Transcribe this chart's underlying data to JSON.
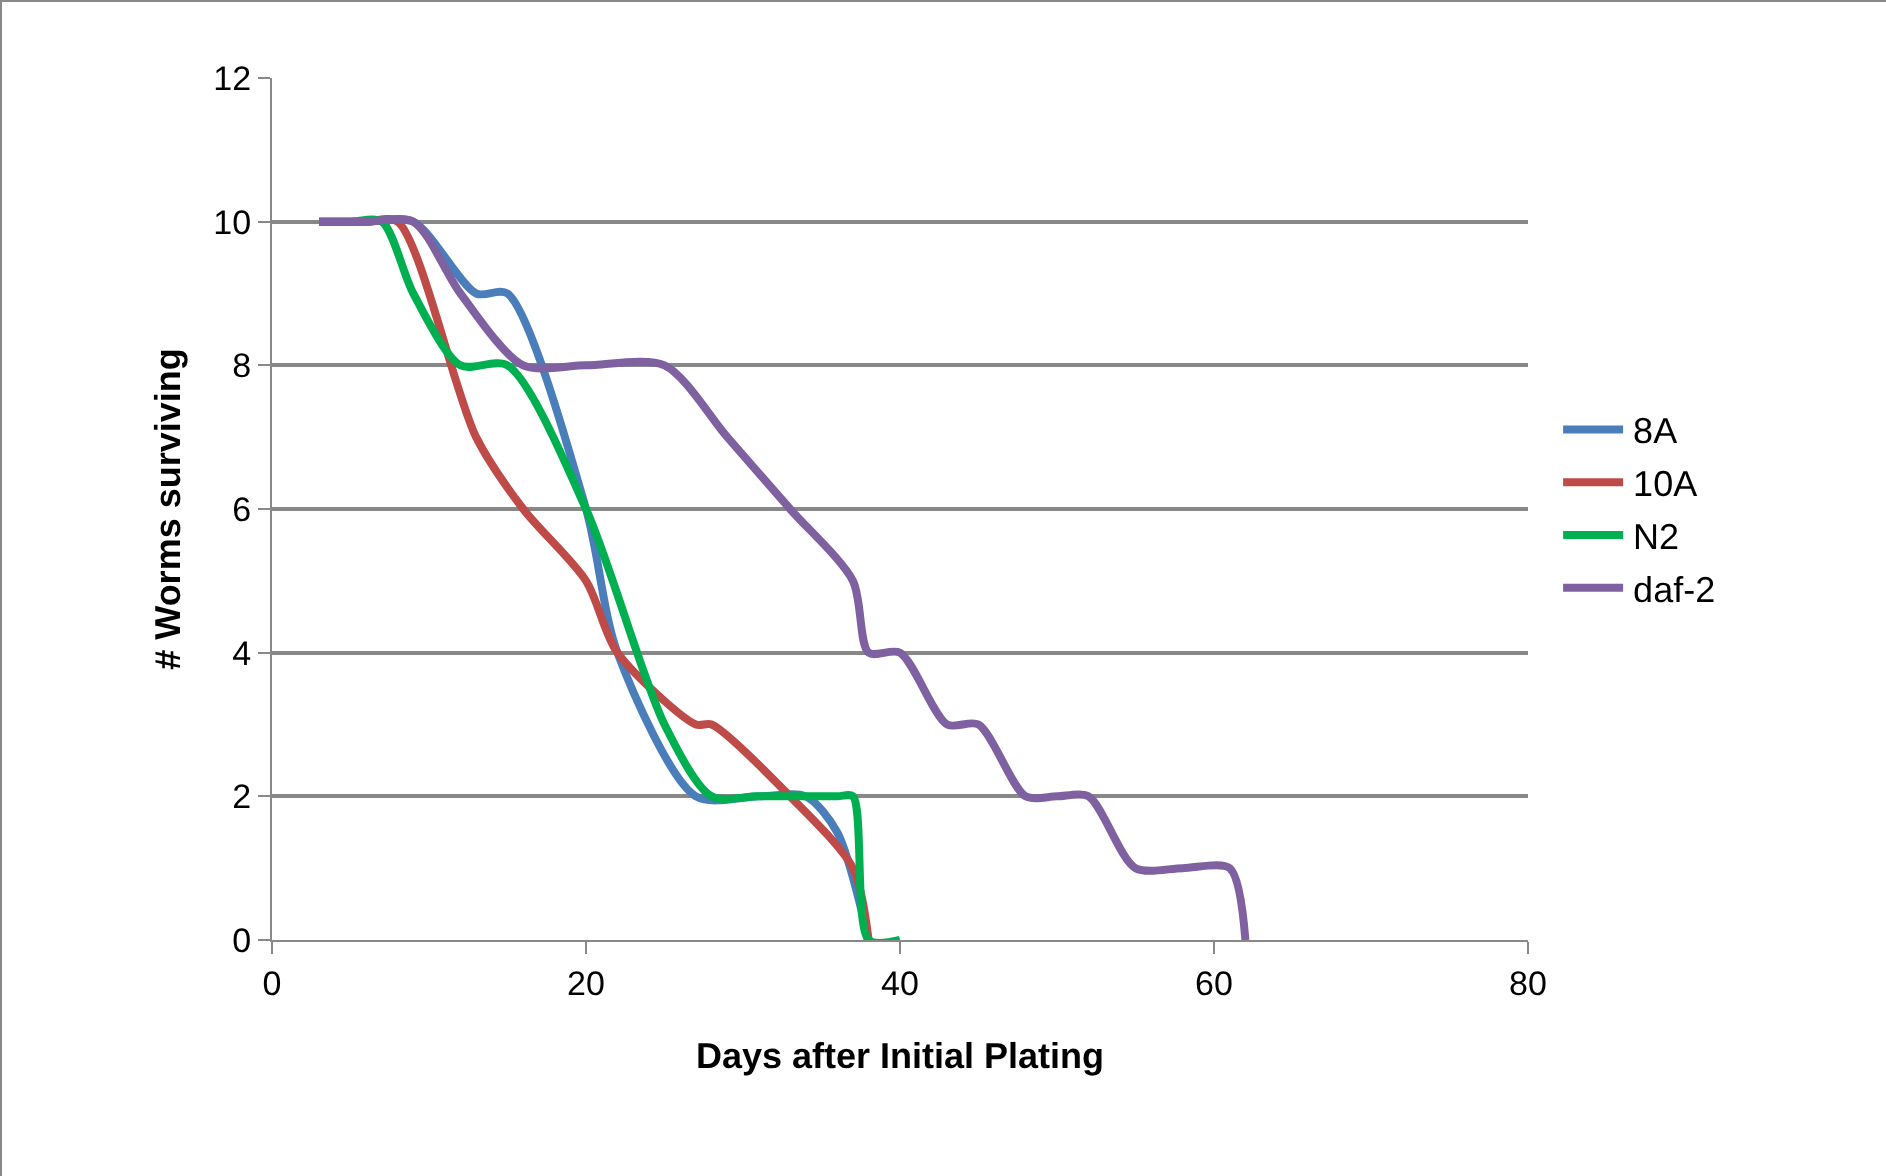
{
  "chart_data": {
    "type": "line",
    "xlabel": "Days after Initial Plating",
    "ylabel": "# Worms surviving",
    "xlim": [
      0,
      80
    ],
    "xticks": [
      0,
      20,
      40,
      60,
      80
    ],
    "ylim": [
      0,
      12
    ],
    "yticks": [
      0,
      2,
      4,
      6,
      8,
      10,
      12
    ],
    "grid": "y",
    "legend": "right",
    "marker": "none",
    "line_style": "solid",
    "series": [
      {
        "name": "8A",
        "color": "#4a7ebb",
        "x": [
          3,
          6,
          9,
          13,
          15,
          20,
          22,
          27,
          31,
          34,
          36,
          38
        ],
        "values": [
          10,
          10,
          10,
          9,
          9,
          6,
          4,
          2,
          2,
          2,
          1.5,
          0
        ]
      },
      {
        "name": "10A",
        "color": "#be4b48",
        "x": [
          3,
          6,
          8,
          13,
          16,
          20,
          22,
          27,
          28,
          33,
          37,
          38
        ],
        "values": [
          10,
          10,
          10,
          7,
          6,
          5,
          4,
          3,
          3,
          2,
          1,
          0
        ]
      },
      {
        "name": "N2",
        "color": "#00b050",
        "x": [
          3,
          5,
          7,
          9,
          12,
          15,
          20,
          25,
          28,
          31,
          36,
          37,
          38,
          40
        ],
        "values": [
          10,
          10,
          10,
          9,
          8,
          8,
          6,
          3,
          2,
          2,
          2,
          2,
          0,
          0
        ]
      },
      {
        "name": "daf-2",
        "color": "#7f60a0",
        "x": [
          3,
          6,
          9,
          12,
          16,
          20,
          25,
          29,
          33,
          37,
          38,
          40,
          43,
          45,
          48,
          50,
          52,
          55,
          58,
          61,
          62
        ],
        "values": [
          10,
          10,
          10,
          9,
          8,
          8,
          8,
          7,
          6,
          5,
          4,
          4,
          3,
          3,
          2,
          2,
          2,
          1,
          1,
          1,
          0
        ]
      }
    ]
  }
}
